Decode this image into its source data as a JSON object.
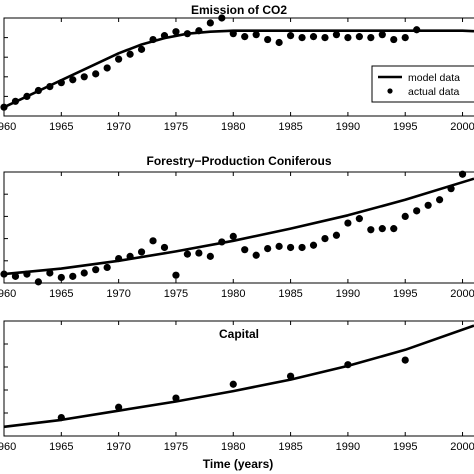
{
  "figure": {
    "xlabel": "Time (years)"
  },
  "chart_data": [
    {
      "type": "line",
      "title": "Emission of CO2",
      "xlim": [
        1960,
        2001
      ],
      "ylim": [
        0,
        10
      ],
      "grid": false,
      "x_ticks": [
        "1960",
        "1965",
        "1970",
        "1975",
        "1980",
        "1985",
        "1990",
        "1995",
        "2000"
      ],
      "legend": {
        "placement": "right",
        "entries": [
          {
            "label": "model data",
            "marker": "line"
          },
          {
            "label": "actual data",
            "marker": "dot"
          }
        ]
      },
      "series": [
        {
          "name": "model data",
          "style": "line",
          "x": [
            1960,
            1962,
            1964,
            1966,
            1968,
            1970,
            1972,
            1974,
            1976,
            1978,
            1980,
            1982,
            1985,
            1990,
            1995,
            2000,
            2001
          ],
          "y": [
            0.9,
            2.0,
            3.1,
            4.2,
            5.3,
            6.4,
            7.3,
            7.95,
            8.4,
            8.6,
            8.7,
            8.7,
            8.7,
            8.7,
            8.7,
            8.7,
            8.65
          ]
        },
        {
          "name": "actual data",
          "style": "dots",
          "x": [
            1960,
            1961,
            1962,
            1963,
            1964,
            1965,
            1966,
            1967,
            1968,
            1969,
            1970,
            1971,
            1972,
            1973,
            1974,
            1975,
            1976,
            1977,
            1978,
            1979,
            1980,
            1981,
            1982,
            1983,
            1984,
            1985,
            1986,
            1987,
            1988,
            1989,
            1990,
            1991,
            1992,
            1993,
            1994,
            1995,
            1996
          ],
          "y": [
            0.9,
            1.5,
            2.0,
            2.6,
            3.0,
            3.4,
            3.7,
            4.0,
            4.3,
            4.9,
            5.8,
            6.3,
            6.8,
            7.8,
            8.2,
            8.6,
            8.4,
            8.7,
            9.5,
            10.0,
            8.4,
            8.1,
            8.3,
            7.8,
            7.5,
            8.2,
            8.0,
            8.1,
            8.0,
            8.3,
            8.0,
            8.1,
            8.0,
            8.3,
            7.8,
            8.0,
            8.8
          ]
        }
      ]
    },
    {
      "type": "line",
      "title": "Forestry−Production Coniferous",
      "xlim": [
        1960,
        2001
      ],
      "ylim": [
        0,
        10
      ],
      "grid": false,
      "x_ticks": [
        "1960",
        "1965",
        "1970",
        "1975",
        "1980",
        "1985",
        "1990",
        "1995",
        "2000"
      ],
      "series": [
        {
          "style": "line",
          "x": [
            1960,
            1965,
            1970,
            1975,
            1980,
            1985,
            1990,
            1995,
            2001
          ],
          "y": [
            0.8,
            1.3,
            2.0,
            2.85,
            3.8,
            4.9,
            6.1,
            7.5,
            9.4
          ]
        },
        {
          "style": "dots",
          "x": [
            1960,
            1961,
            1962,
            1963,
            1964,
            1965,
            1966,
            1967,
            1968,
            1969,
            1970,
            1971,
            1972,
            1973,
            1974,
            1975,
            1976,
            1977,
            1978,
            1979,
            1980,
            1981,
            1982,
            1983,
            1984,
            1985,
            1986,
            1987,
            1988,
            1989,
            1990,
            1991,
            1992,
            1993,
            1994,
            1995,
            1996,
            1997,
            1998,
            1999,
            2000
          ],
          "y": [
            0.8,
            0.6,
            0.8,
            0.1,
            0.9,
            0.5,
            0.6,
            0.9,
            1.2,
            1.4,
            2.2,
            2.4,
            2.8,
            3.8,
            3.2,
            0.7,
            2.6,
            2.7,
            2.4,
            3.7,
            4.2,
            3.0,
            2.5,
            3.1,
            3.3,
            3.2,
            3.2,
            3.4,
            4.0,
            4.3,
            5.4,
            5.8,
            4.8,
            4.9,
            4.9,
            6.0,
            6.5,
            7.0,
            7.5,
            8.5,
            9.8
          ]
        }
      ]
    },
    {
      "type": "line",
      "title": "Capital",
      "xlim": [
        1960,
        2001
      ],
      "ylim": [
        0,
        10
      ],
      "grid": false,
      "x_ticks": [
        "1960",
        "1965",
        "1970",
        "1975",
        "1980",
        "1985",
        "1990",
        "1995",
        "2000"
      ],
      "series": [
        {
          "style": "line",
          "x": [
            1960,
            1965,
            1970,
            1975,
            1980,
            1985,
            1990,
            1995,
            2001
          ],
          "y": [
            0.8,
            1.4,
            2.2,
            3.0,
            3.9,
            4.9,
            6.1,
            7.5,
            9.6
          ]
        },
        {
          "style": "dots",
          "x": [
            1965,
            1970,
            1975,
            1980,
            1985,
            1990,
            1995
          ],
          "y": [
            1.6,
            2.5,
            3.3,
            4.5,
            5.2,
            6.2,
            6.6
          ]
        }
      ]
    }
  ]
}
